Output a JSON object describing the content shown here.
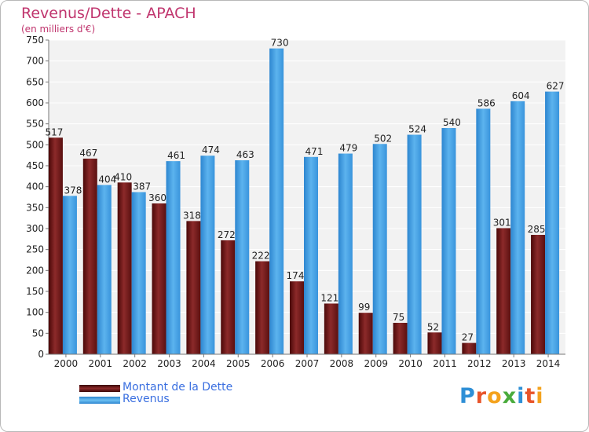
{
  "header": {
    "title": "Revenus/Dette - APACH",
    "subtitle": "(en milliers d'€)"
  },
  "legend": {
    "debt_label": "Montant de la Dette",
    "revenue_label": "Revenus"
  },
  "logo": {
    "text": "Proxiti"
  },
  "colors": {
    "debt": "#7a1a1a",
    "revenue": "#4da6e8",
    "title": "#c0356e",
    "legend_text": "#3a6fe0"
  },
  "chart_data": {
    "type": "bar",
    "title": "Revenus/Dette - APACH",
    "subtitle": "(en milliers d'€)",
    "categories": [
      "2000",
      "2001",
      "2002",
      "2003",
      "2004",
      "2005",
      "2006",
      "2007",
      "2008",
      "2009",
      "2010",
      "2011",
      "2012",
      "2013",
      "2014"
    ],
    "series": [
      {
        "name": "Montant de la Dette",
        "values": [
          517,
          467,
          410,
          360,
          318,
          272,
          222,
          174,
          121,
          99,
          75,
          52,
          27,
          301,
          285
        ]
      },
      {
        "name": "Revenus",
        "values": [
          378,
          404,
          387,
          461,
          474,
          463,
          730,
          471,
          479,
          502,
          524,
          540,
          586,
          604,
          627
        ]
      }
    ],
    "ylim": [
      0,
      750
    ],
    "yticks": [
      0,
      50,
      100,
      150,
      200,
      250,
      300,
      350,
      400,
      450,
      500,
      550,
      600,
      650,
      700,
      750
    ],
    "grid": true,
    "legend_position": "bottom-left"
  }
}
